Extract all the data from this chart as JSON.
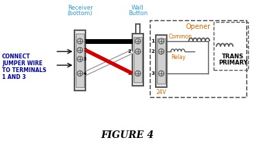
{
  "title": "FIGURE 4",
  "bg_color": "#ffffff",
  "text_color_blue": "#3399cc",
  "text_color_orange": "#cc6600",
  "text_color_black": "#000000",
  "text_color_bold_blue": "#000099",
  "left_label_lines": [
    "CONNECT",
    "JUMPER WIRE",
    "TO TERMINALS",
    "1 AND 3"
  ],
  "receiver_label": [
    "Receiver",
    "(bottom)"
  ],
  "wall_button_label": [
    "Wall",
    "Button"
  ],
  "opener_label": "Opener",
  "common_label": "Common",
  "relay_label": "Relay",
  "v24_label": "24V",
  "trans_label": [
    "TRANS",
    "PRIMARY"
  ]
}
